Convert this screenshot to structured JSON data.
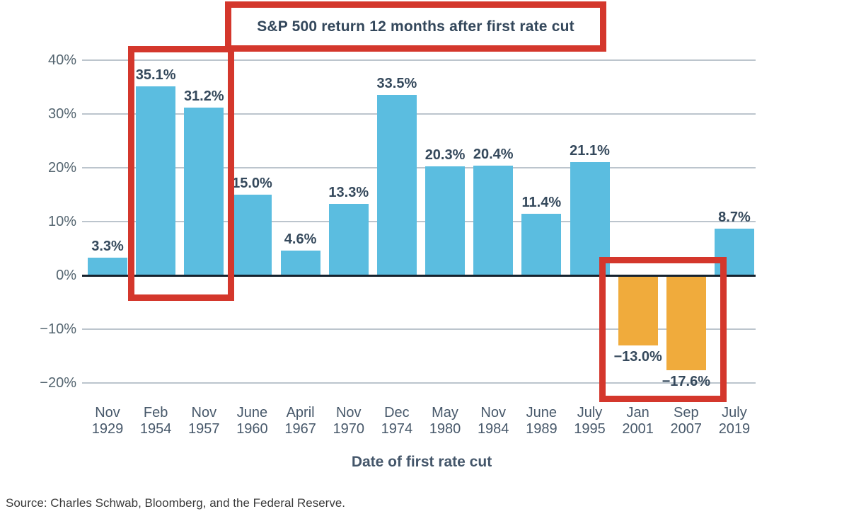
{
  "chart_data": {
    "type": "bar",
    "title": "S&P 500 return 12 months after first rate cut",
    "xlabel": "Date of first rate cut",
    "ylabel": "",
    "ylim": [
      -20,
      40
    ],
    "grid": true,
    "legend": false,
    "yticks": [
      {
        "value": 40,
        "label": "40%"
      },
      {
        "value": 30,
        "label": "30%"
      },
      {
        "value": 20,
        "label": "20%"
      },
      {
        "value": 10,
        "label": "10%"
      },
      {
        "value": 0,
        "label": "0%"
      },
      {
        "value": -10,
        "label": "−10%"
      },
      {
        "value": -20,
        "label": "−20%"
      }
    ],
    "categories": [
      {
        "month": "Nov",
        "year": "1929"
      },
      {
        "month": "Feb",
        "year": "1954"
      },
      {
        "month": "Nov",
        "year": "1957"
      },
      {
        "month": "June",
        "year": "1960"
      },
      {
        "month": "April",
        "year": "1967"
      },
      {
        "month": "Nov",
        "year": "1970"
      },
      {
        "month": "Dec",
        "year": "1974"
      },
      {
        "month": "May",
        "year": "1980"
      },
      {
        "month": "Nov",
        "year": "1984"
      },
      {
        "month": "June",
        "year": "1989"
      },
      {
        "month": "July",
        "year": "1995"
      },
      {
        "month": "Jan",
        "year": "2001"
      },
      {
        "month": "Sep",
        "year": "2007"
      },
      {
        "month": "July",
        "year": "2019"
      }
    ],
    "values": [
      3.3,
      35.1,
      31.2,
      15.0,
      4.6,
      13.3,
      33.5,
      20.3,
      20.4,
      11.4,
      21.1,
      -13.0,
      -17.6,
      8.7
    ],
    "bar_labels": [
      "3.3%",
      "35.1%",
      "31.2%",
      "15.0%",
      "4.6%",
      "13.3%",
      "33.5%",
      "20.3%",
      "20.4%",
      "11.4%",
      "21.1%",
      "−13.0%",
      "−17.6%",
      "8.7%"
    ],
    "colors": {
      "positive_bar": "#5bbde0",
      "negative_bar": "#f0ab3c",
      "zero_axis": "#16222e",
      "gridline": "#bcc5cd"
    }
  },
  "annotations": {
    "box_color": "#d4372c",
    "boxes": [
      {
        "id": "title-box",
        "around": "chart title"
      },
      {
        "id": "high-returns-box",
        "around": "Feb 1954 and Nov 1957 bars"
      },
      {
        "id": "negative-returns-box",
        "around": "Jan 2001 and Sep 2007 bars"
      }
    ]
  },
  "source": {
    "text": "Source: Charles Schwab, Bloomberg, and the Federal Reserve."
  }
}
